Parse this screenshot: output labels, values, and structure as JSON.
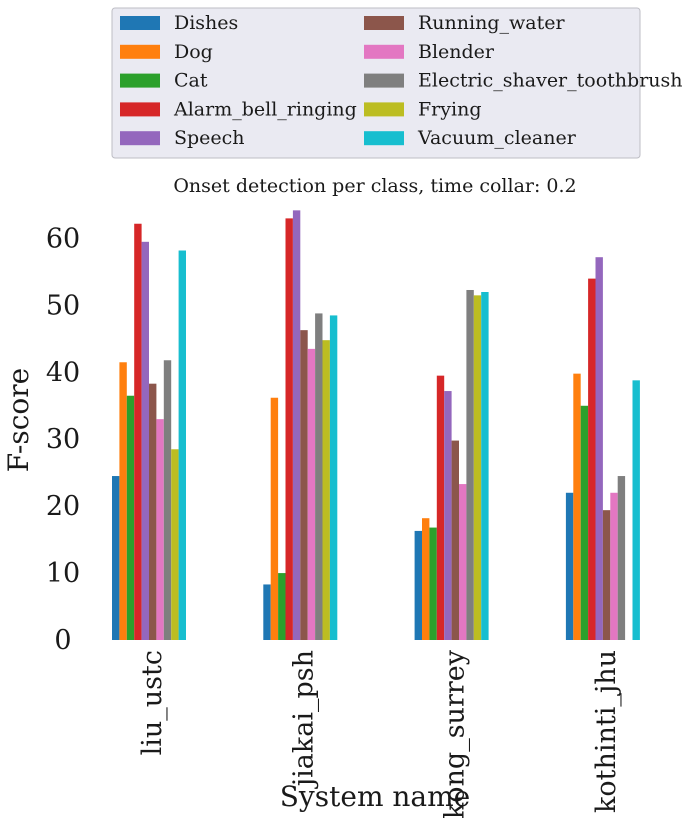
{
  "chart_data": {
    "type": "bar",
    "title": "Onset detection per class, time collar: 0.2",
    "xlabel": "System name",
    "ylabel": "F-score",
    "ylim": [
      0,
      65
    ],
    "yticks": [
      0,
      10,
      20,
      30,
      40,
      50,
      60
    ],
    "grid": false,
    "legend_position": "top",
    "categories": [
      "liu_ustc",
      "jiakai_psh",
      "kong_surrey",
      "kothinti_jhu"
    ],
    "series": [
      {
        "name": "Dishes",
        "color": "#1f77b4",
        "values": [
          24.5,
          8.3,
          16.3,
          22.0
        ]
      },
      {
        "name": "Dog",
        "color": "#ff7f0e",
        "values": [
          41.5,
          36.2,
          18.2,
          39.8
        ]
      },
      {
        "name": "Cat",
        "color": "#2ca02c",
        "values": [
          36.5,
          10.0,
          16.8,
          35.0
        ]
      },
      {
        "name": "Alarm_bell_ringing",
        "color": "#d62728",
        "values": [
          62.2,
          63.0,
          39.5,
          54.0
        ]
      },
      {
        "name": "Speech",
        "color": "#9467bd",
        "values": [
          59.5,
          64.2,
          37.2,
          57.2
        ]
      },
      {
        "name": "Running_water",
        "color": "#8c564b",
        "values": [
          38.3,
          46.3,
          29.8,
          19.4
        ]
      },
      {
        "name": "Blender",
        "color": "#e377c2",
        "values": [
          33.0,
          43.5,
          23.3,
          22.0
        ]
      },
      {
        "name": "Electric_shaver_toothbrush",
        "color": "#7f7f7f",
        "values": [
          41.8,
          48.8,
          52.3,
          24.5
        ]
      },
      {
        "name": "Frying",
        "color": "#bcbd22",
        "values": [
          28.5,
          44.8,
          51.5,
          0
        ]
      },
      {
        "name": "Vacuum_cleaner",
        "color": "#17becf",
        "values": [
          58.2,
          48.5,
          52.0,
          38.8
        ]
      }
    ]
  }
}
